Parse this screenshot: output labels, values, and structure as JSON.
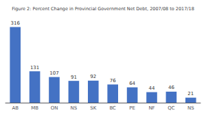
{
  "chart_data": {
    "type": "bar",
    "title": "Figure 2: Percent Change in Provincial Government Net Debt, 2007/08 to 2017/18",
    "categories": [
      "AB",
      "MB",
      "ON",
      "NS",
      "SK",
      "BC",
      "PE",
      "NF",
      "QC",
      "NS"
    ],
    "values": [
      316,
      131,
      107,
      91,
      92,
      76,
      64,
      44,
      46,
      21
    ],
    "color": "#4472C4",
    "ylim": [
      0,
      360
    ],
    "grid": false,
    "data_labels": true,
    "tick_labels": "x"
  }
}
